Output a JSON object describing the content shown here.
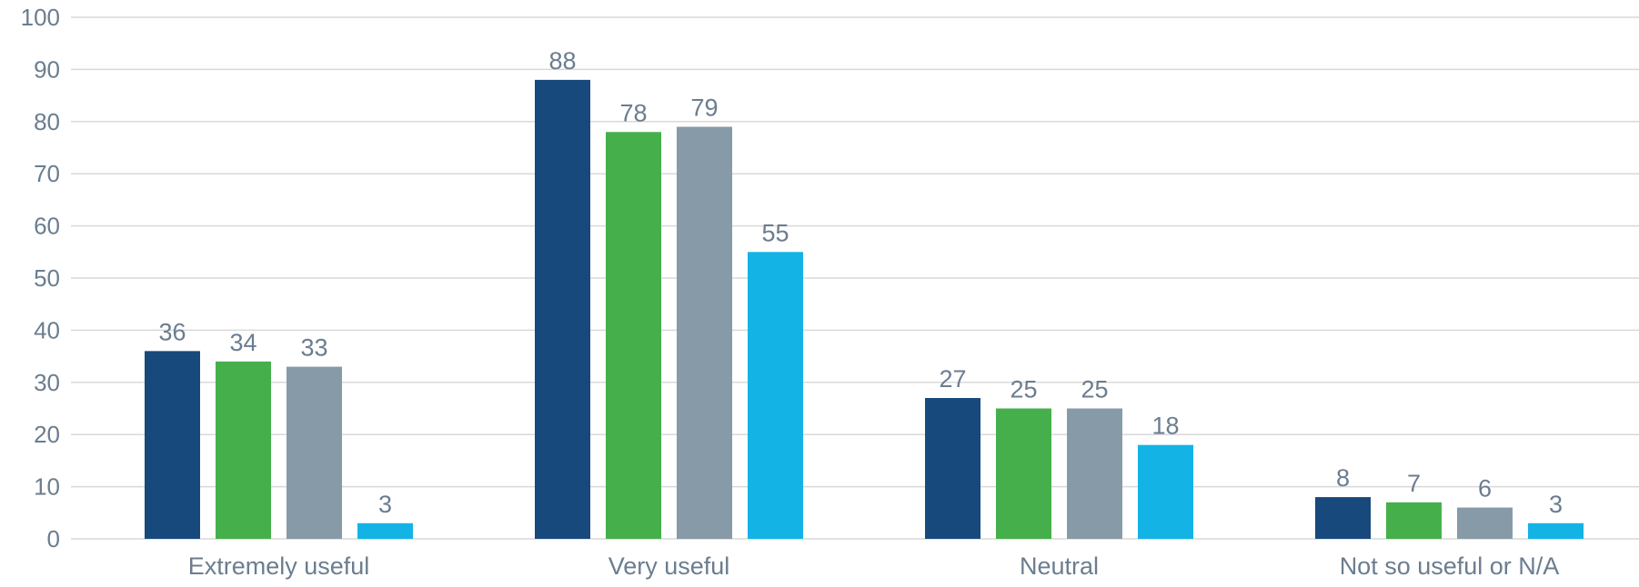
{
  "chart_data": {
    "type": "bar",
    "categories": [
      "Extremely useful",
      "Very useful",
      "Neutral",
      "Not so useful or N/A"
    ],
    "series": [
      {
        "values": [
          36,
          88,
          27,
          8
        ],
        "color": "#17497d"
      },
      {
        "values": [
          34,
          78,
          25,
          7
        ],
        "color": "#45b04b"
      },
      {
        "values": [
          33,
          79,
          25,
          6
        ],
        "color": "#879aa8"
      },
      {
        "values": [
          3,
          55,
          18,
          3
        ],
        "color": "#14b3e6"
      }
    ],
    "ylim": [
      0,
      100
    ],
    "yticks": [
      "0",
      "10",
      "20",
      "30",
      "40",
      "50",
      "60",
      "70",
      "80",
      "90",
      "100"
    ],
    "grid": true,
    "legend": "none",
    "data_labels": true
  }
}
